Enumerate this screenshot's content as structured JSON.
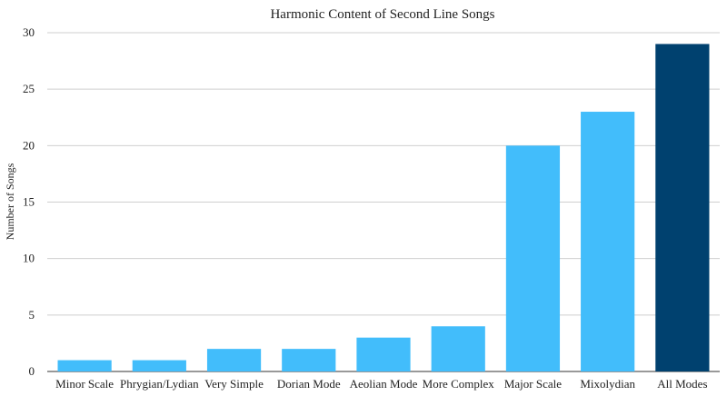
{
  "chart_data": {
    "type": "bar",
    "title": "Harmonic Content of Second Line Songs",
    "xlabel": "",
    "ylabel": "Number of Songs",
    "ylim": [
      0,
      30
    ],
    "yticks": [
      0,
      5,
      10,
      15,
      20,
      25,
      30
    ],
    "grid": true,
    "categories": [
      "Minor Scale",
      "Phrygian/Lydian",
      "Very Simple",
      "Dorian Mode",
      "Aeolian Mode",
      "More Complex",
      "Major Scale",
      "Mixolydian",
      "All Modes"
    ],
    "values": [
      1,
      1,
      2,
      2,
      3,
      4,
      20,
      23,
      29
    ],
    "colors": {
      "bar": "#42bdfb",
      "highlight_bar": "#00416f",
      "highlight_category": "All Modes"
    }
  }
}
